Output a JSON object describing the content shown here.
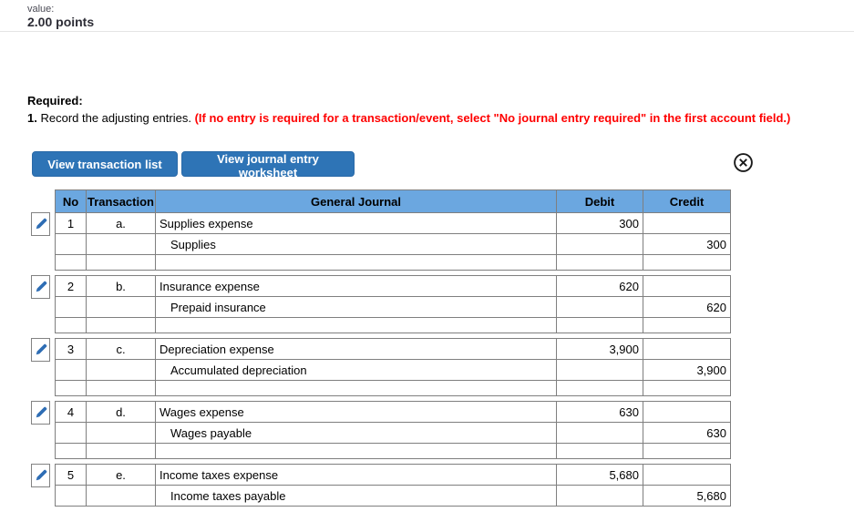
{
  "page": {
    "value_label": "value:",
    "points": "2.00 points"
  },
  "instructions": {
    "required_label": "Required:",
    "item_number": "1.",
    "item_text": "Record the adjusting entries.",
    "item_warning": "(If no entry is required for a transaction/event, select \"No journal entry required\" in the first account field.)"
  },
  "toolbar": {
    "view_transaction_list_label": "View transaction list",
    "view_journal_entry_worksheet_label": "View journal entry worksheet",
    "close_icon": "circled-x-icon"
  },
  "journal": {
    "columns": [
      "No",
      "Transaction",
      "General Journal",
      "Debit",
      "Credit"
    ],
    "groups": [
      {
        "no": "1",
        "transaction": "a.",
        "debit_entry": {
          "account": "Supplies expense",
          "amount": "300"
        },
        "credit_entry": {
          "account": "Supplies",
          "amount": "300"
        },
        "trailing_blank_row": true
      },
      {
        "no": "2",
        "transaction": "b.",
        "debit_entry": {
          "account": "Insurance expense",
          "amount": "620"
        },
        "credit_entry": {
          "account": "Prepaid insurance",
          "amount": "620"
        },
        "trailing_blank_row": true
      },
      {
        "no": "3",
        "transaction": "c.",
        "debit_entry": {
          "account": "Depreciation expense",
          "amount": "3,900"
        },
        "credit_entry": {
          "account": "Accumulated depreciation",
          "amount": "3,900"
        },
        "trailing_blank_row": true
      },
      {
        "no": "4",
        "transaction": "d.",
        "debit_entry": {
          "account": "Wages expense",
          "amount": "630"
        },
        "credit_entry": {
          "account": "Wages payable",
          "amount": "630"
        },
        "trailing_blank_row": true
      },
      {
        "no": "5",
        "transaction": "e.",
        "debit_entry": {
          "account": "Income taxes expense",
          "amount": "5,680"
        },
        "credit_entry": {
          "account": "Income taxes payable",
          "amount": "5,680"
        },
        "trailing_blank_row": false
      }
    ]
  },
  "colors": {
    "header_blue": "#6ba7e0",
    "button_blue": "#2e74b6",
    "pencil_blue": "#2e6db4",
    "warning_red": "#ff0000",
    "border_gray": "#7f7f7f"
  }
}
